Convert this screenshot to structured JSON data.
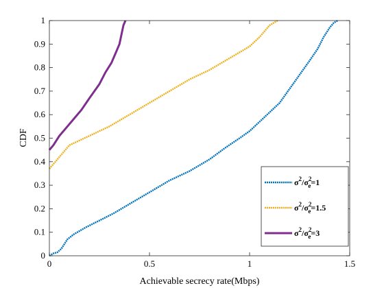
{
  "chart_data": {
    "type": "line",
    "xlabel": "Achievable secrecy rate(Mbps)",
    "ylabel": "CDF",
    "xlim": [
      0,
      1.5
    ],
    "ylim": [
      0,
      1
    ],
    "x_ticks": [
      "0",
      "0.5",
      "1",
      "1.5"
    ],
    "y_ticks": [
      "0",
      "0.1",
      "0.2",
      "0.3",
      "0.4",
      "0.5",
      "0.6",
      "0.7",
      "0.8",
      "0.9",
      "1"
    ],
    "grid": false,
    "legend_position": "bottom-right",
    "series": [
      {
        "name": "σ²/σe²=1",
        "legend": {
          "base": "σ",
          "sup": "2",
          "sep": "/",
          "base2": "σ",
          "sub2": "e",
          "sup2": "2",
          "tail": "=1"
        },
        "color": "#0072BD",
        "x": [
          0.0,
          0.02,
          0.04,
          0.06,
          0.09,
          0.12,
          0.18,
          0.25,
          0.32,
          0.4,
          0.5,
          0.6,
          0.7,
          0.8,
          0.88,
          0.95,
          1.0,
          1.05,
          1.1,
          1.15,
          1.2,
          1.25,
          1.3,
          1.34,
          1.37,
          1.4,
          1.42,
          1.44
        ],
        "y": [
          0.0,
          0.01,
          0.015,
          0.03,
          0.07,
          0.09,
          0.12,
          0.15,
          0.18,
          0.22,
          0.27,
          0.32,
          0.36,
          0.41,
          0.46,
          0.5,
          0.53,
          0.57,
          0.61,
          0.65,
          0.71,
          0.77,
          0.83,
          0.88,
          0.93,
          0.97,
          0.99,
          1.0
        ]
      },
      {
        "name": "σ²/σe²=1.5",
        "legend": {
          "base": "σ",
          "sup": "2",
          "sep": "/",
          "base2": "σ",
          "sub2": "e",
          "sup2": "2",
          "tail": "=1.5"
        },
        "color": "#EDB120",
        "x": [
          0.0,
          0.01,
          0.03,
          0.06,
          0.1,
          0.15,
          0.2,
          0.3,
          0.4,
          0.5,
          0.6,
          0.7,
          0.8,
          0.9,
          1.0,
          1.05,
          1.08,
          1.1,
          1.12,
          1.14
        ],
        "y": [
          0.37,
          0.38,
          0.4,
          0.43,
          0.47,
          0.49,
          0.51,
          0.55,
          0.6,
          0.65,
          0.7,
          0.75,
          0.79,
          0.84,
          0.89,
          0.93,
          0.96,
          0.98,
          0.99,
          1.0
        ]
      },
      {
        "name": "σ²/σe²=3",
        "legend": {
          "base": "σ",
          "sup": "2",
          "sep": "/",
          "base2": "σ",
          "sub2": "e",
          "sup2": "2",
          "tail": "=3"
        },
        "color": "#7E2F8E",
        "x": [
          0.0,
          0.02,
          0.05,
          0.08,
          0.12,
          0.16,
          0.2,
          0.25,
          0.28,
          0.31,
          0.33,
          0.35,
          0.36,
          0.37,
          0.38
        ],
        "y": [
          0.45,
          0.47,
          0.51,
          0.54,
          0.58,
          0.62,
          0.67,
          0.73,
          0.78,
          0.82,
          0.86,
          0.9,
          0.94,
          0.98,
          1.0
        ]
      }
    ]
  }
}
